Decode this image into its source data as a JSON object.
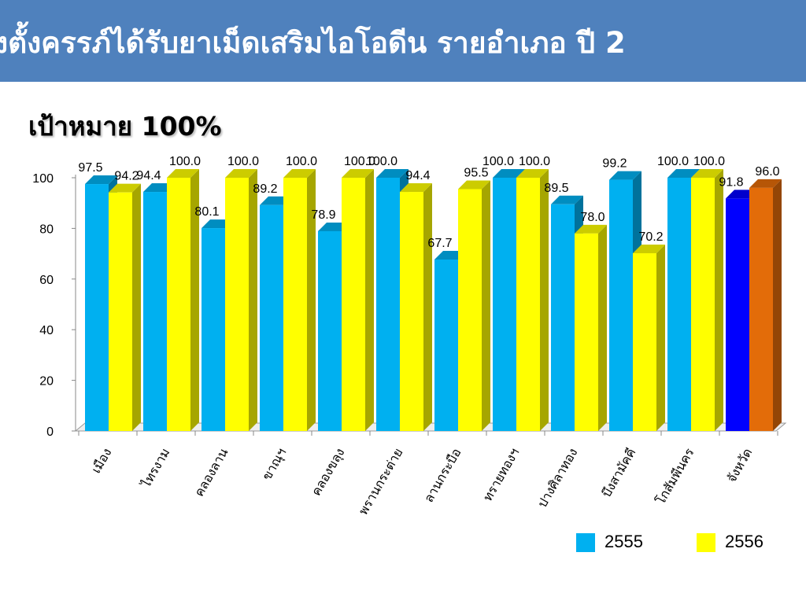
{
  "header": {
    "title": "งตั้งครรภ์ได้รับยาเม็ดเสริมไอโอดีน รายอำเภอ ปี 2",
    "target_label": "เป้าหมาย 100%"
  },
  "colors": {
    "header_bg": "#4f81bd",
    "series_2555": "#00b0f0",
    "series_2556": "#ffff00",
    "province_2555": "#0000ff",
    "province_2556": "#e36c09"
  },
  "chart_data": {
    "type": "bar",
    "categories": [
      "เมือง",
      "ไทรงาม",
      "คลองลาน",
      "ขาณุฯ",
      "คลองขลุง",
      "พรานกระต่าย",
      "ลานกระบือ",
      "ทรายทองฯ",
      "ปางศิลาทอง",
      "บึงสามัคคี",
      "โกสัมพีนคร",
      "จังหวัด"
    ],
    "series": [
      {
        "name": "2555",
        "values": [
          97.5,
          94.4,
          80.1,
          89.2,
          78.9,
          100.0,
          67.7,
          100.0,
          89.5,
          99.2,
          100.0,
          91.8
        ],
        "labels": [
          "97.5",
          "94.4",
          "80.1",
          "89.2",
          "78.9",
          "100.0",
          "67.7",
          "100.0",
          "89.5",
          "99.2",
          "100.0",
          "91.8"
        ]
      },
      {
        "name": "2556",
        "values": [
          94.2,
          100.0,
          100.0,
          100.0,
          100.0,
          94.4,
          95.5,
          100.0,
          78.0,
          70.2,
          100.0,
          96.0
        ],
        "labels": [
          "94.2",
          "100.0",
          "100.0",
          "100.0",
          "100.0",
          "94.4",
          "95.5",
          "100.0",
          "78.0",
          "70.2",
          "100.0",
          "96.0"
        ]
      }
    ],
    "yticks": [
      "0",
      "20",
      "40",
      "60",
      "80",
      "100"
    ],
    "ylim": [
      0,
      100
    ],
    "legend": {
      "position": "bottom-right",
      "entries": [
        "2555",
        "2556"
      ]
    },
    "title": "",
    "xlabel": "",
    "ylabel": ""
  }
}
